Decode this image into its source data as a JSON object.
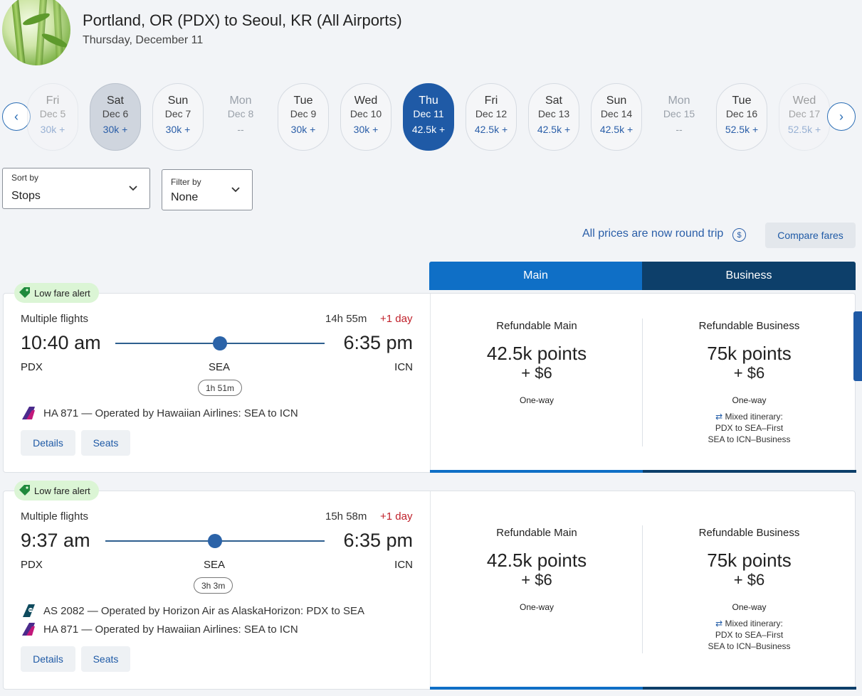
{
  "header": {
    "title": "Portland, OR (PDX) to Seoul, KR (All Airports)",
    "date": "Thursday, December 11"
  },
  "dates": [
    {
      "dow": "Fri",
      "date": "Dec 5",
      "price": "30k +"
    },
    {
      "dow": "Sat",
      "date": "Dec 6",
      "price": "30k +"
    },
    {
      "dow": "Sun",
      "date": "Dec 7",
      "price": "30k +"
    },
    {
      "dow": "Mon",
      "date": "Dec 8",
      "price": "--"
    },
    {
      "dow": "Tue",
      "date": "Dec 9",
      "price": "30k +"
    },
    {
      "dow": "Wed",
      "date": "Dec 10",
      "price": "30k +"
    },
    {
      "dow": "Thu",
      "date": "Dec 11",
      "price": "42.5k +"
    },
    {
      "dow": "Fri",
      "date": "Dec 12",
      "price": "42.5k +"
    },
    {
      "dow": "Sat",
      "date": "Dec 13",
      "price": "42.5k +"
    },
    {
      "dow": "Sun",
      "date": "Dec 14",
      "price": "42.5k +"
    },
    {
      "dow": "Mon",
      "date": "Dec 15",
      "price": "--"
    },
    {
      "dow": "Tue",
      "date": "Dec 16",
      "price": "52.5k +"
    },
    {
      "dow": "Wed",
      "date": "Dec 17",
      "price": "52.5k +"
    }
  ],
  "sort": {
    "label": "Sort by",
    "value": "Stops"
  },
  "filter": {
    "label": "Filter by",
    "value": "None"
  },
  "round_trip_note": "All prices are now round trip",
  "dollar_symbol": "$",
  "compare_label": "Compare fares",
  "tabs": {
    "main": "Main",
    "business": "Business"
  },
  "flights": [
    {
      "alert": "Low fare alert",
      "type": "Multiple flights",
      "duration": "14h 55m",
      "plus_day": "+1 day",
      "depart": "10:40 am",
      "arrive": "6:35 pm",
      "origin": "PDX",
      "stop": "SEA",
      "dest": "ICN",
      "layover": "1h 51m",
      "operators": [
        "HA 871 — Operated by Hawaiian Airlines: SEA to ICN"
      ],
      "details": "Details",
      "seats": "Seats",
      "main_fare": {
        "name": "Refundable Main",
        "points": "42.5k points",
        "fee": "+ $6",
        "trip": "One-way"
      },
      "biz_fare": {
        "name": "Refundable Business",
        "points": "75k points",
        "fee": "+ $6",
        "trip": "One-way",
        "mixed": "Mixed itinerary:",
        "seg1": "PDX to SEA–First",
        "seg2": "SEA to ICN–Business"
      }
    },
    {
      "alert": "Low fare alert",
      "type": "Multiple flights",
      "duration": "15h 58m",
      "plus_day": "+1 day",
      "depart": "9:37 am",
      "arrive": "6:35 pm",
      "origin": "PDX",
      "stop": "SEA",
      "dest": "ICN",
      "layover": "3h 3m",
      "operators": [
        "AS 2082 — Operated by Horizon Air as AlaskaHorizon: PDX to SEA",
        "HA 871 — Operated by Hawaiian Airlines: SEA to ICN"
      ],
      "details": "Details",
      "seats": "Seats",
      "main_fare": {
        "name": "Refundable Main",
        "points": "42.5k points",
        "fee": "+ $6",
        "trip": "One-way"
      },
      "biz_fare": {
        "name": "Refundable Business",
        "points": "75k points",
        "fee": "+ $6",
        "trip": "One-way",
        "mixed": "Mixed itinerary:",
        "seg1": "PDX to SEA–First",
        "seg2": "SEA to ICN–Business"
      }
    }
  ]
}
